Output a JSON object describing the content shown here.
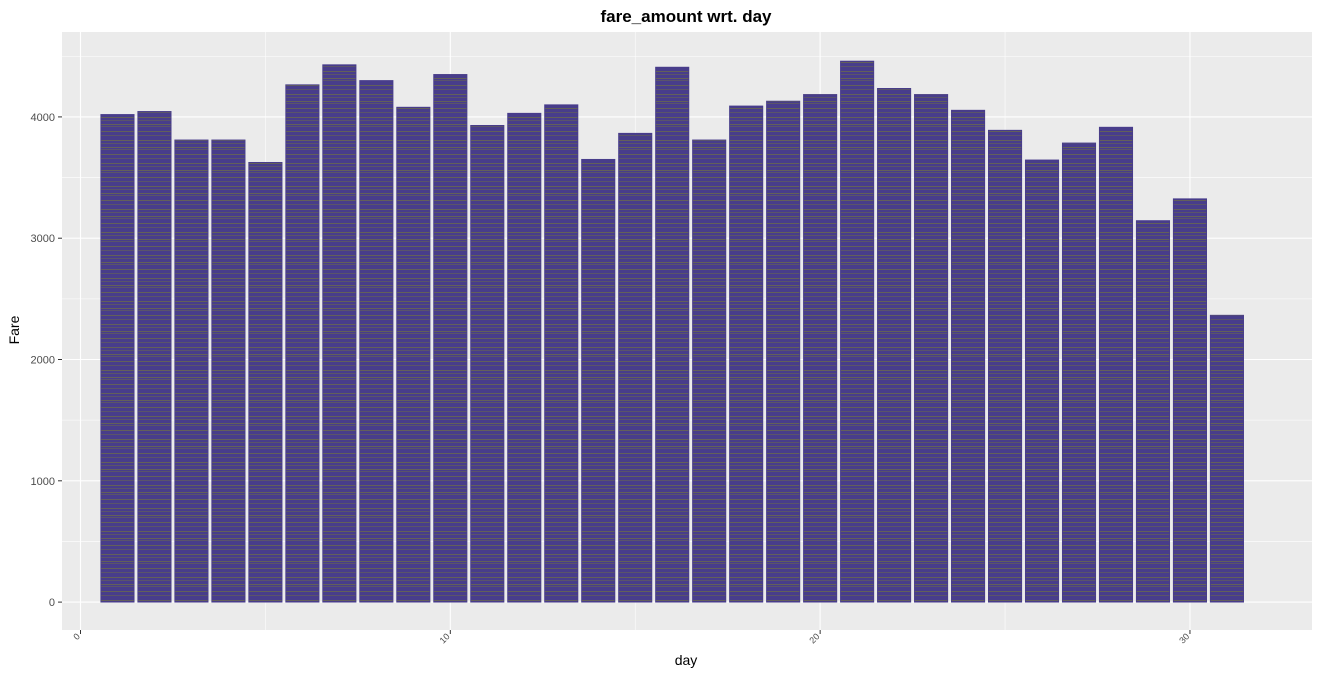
{
  "chart_data": {
    "type": "bar",
    "title": "fare_amount wrt. day",
    "xlabel": "day",
    "ylabel": "Fare",
    "x": [
      1,
      2,
      3,
      4,
      5,
      6,
      7,
      8,
      9,
      10,
      11,
      12,
      13,
      14,
      15,
      16,
      17,
      18,
      19,
      20,
      21,
      22,
      23,
      24,
      25,
      26,
      27,
      28,
      29,
      30,
      31
    ],
    "values": [
      4020,
      4045,
      3810,
      3810,
      3625,
      4265,
      4430,
      4300,
      4080,
      4350,
      3930,
      4030,
      4100,
      3650,
      3865,
      4410,
      3810,
      4090,
      4130,
      4185,
      4460,
      4235,
      4185,
      4055,
      3890,
      3645,
      3785,
      3915,
      3145,
      3325,
      2365
    ],
    "xlim": [
      -0.5,
      33.3
    ],
    "ylim": [
      -230,
      4700
    ],
    "x_ticks": [
      0,
      10,
      20,
      30
    ],
    "x_tick_labels": [
      "0",
      "10",
      "20",
      "30"
    ],
    "y_ticks": [
      0,
      1000,
      2000,
      3000,
      4000
    ],
    "y_tick_labels": [
      "0",
      "1000",
      "2000",
      "3000",
      "4000"
    ],
    "grid": true,
    "panel_color": "#ebebeb",
    "bar_fill": "#483d8b",
    "bar_stripe_color": "#6b6b4a"
  }
}
